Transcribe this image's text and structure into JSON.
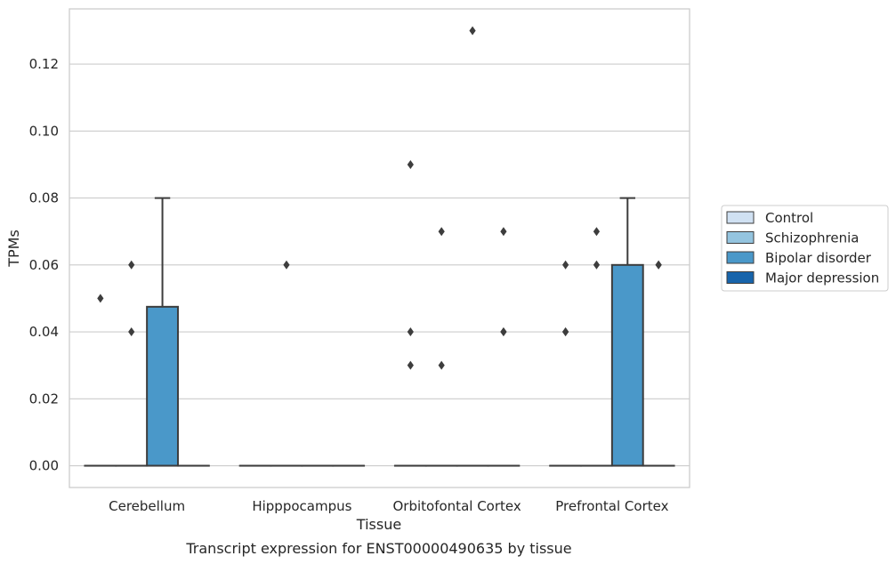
{
  "chart_data": {
    "type": "box",
    "caption": "Transcript expression for ENST00000490635 by tissue",
    "xlabel": "Tissue",
    "ylabel": "TPMs",
    "categories": [
      "Cerebellum",
      "Hipppocampus",
      "Orbitofontal Cortex",
      "Prefrontal Cortex"
    ],
    "yticks": [
      "0.00",
      "0.02",
      "0.04",
      "0.06",
      "0.08",
      "0.10",
      "0.12"
    ],
    "ylim": [
      -0.0065,
      0.1365
    ],
    "grid": "horizontal",
    "legend_position": "right",
    "series": [
      {
        "name": "Control",
        "color": "#d0e1f2"
      },
      {
        "name": "Schizophrenia",
        "color": "#94c4df"
      },
      {
        "name": "Bipolar disorder",
        "color": "#4a98c9"
      },
      {
        "name": "Major depression",
        "color": "#1764ab"
      }
    ],
    "boxes": [
      {
        "category": 0,
        "series": 0,
        "q1": 0,
        "median": 0,
        "q3": 0,
        "whisker_low": 0,
        "whisker_high": 0,
        "outliers": [
          0.05
        ]
      },
      {
        "category": 0,
        "series": 1,
        "q1": 0,
        "median": 0,
        "q3": 0,
        "whisker_low": 0,
        "whisker_high": 0,
        "outliers": [
          0.06,
          0.04
        ]
      },
      {
        "category": 0,
        "series": 2,
        "q1": 0,
        "median": 0,
        "q3": 0.0475,
        "whisker_low": 0,
        "whisker_high": 0.08,
        "outliers": []
      },
      {
        "category": 0,
        "series": 3,
        "q1": 0,
        "median": 0,
        "q3": 0,
        "whisker_low": 0,
        "whisker_high": 0,
        "outliers": []
      },
      {
        "category": 1,
        "series": 0,
        "q1": 0,
        "median": 0,
        "q3": 0,
        "whisker_low": 0,
        "whisker_high": 0,
        "outliers": []
      },
      {
        "category": 1,
        "series": 1,
        "q1": 0,
        "median": 0,
        "q3": 0,
        "whisker_low": 0,
        "whisker_high": 0,
        "outliers": [
          0.06
        ]
      },
      {
        "category": 1,
        "series": 2,
        "q1": 0,
        "median": 0,
        "q3": 0,
        "whisker_low": 0,
        "whisker_high": 0,
        "outliers": []
      },
      {
        "category": 1,
        "series": 3,
        "q1": 0,
        "median": 0,
        "q3": 0,
        "whisker_low": 0,
        "whisker_high": 0,
        "outliers": []
      },
      {
        "category": 2,
        "series": 0,
        "q1": 0,
        "median": 0,
        "q3": 0,
        "whisker_low": 0,
        "whisker_high": 0,
        "outliers": [
          0.09,
          0.04,
          0.03
        ]
      },
      {
        "category": 2,
        "series": 1,
        "q1": 0,
        "median": 0,
        "q3": 0,
        "whisker_low": 0,
        "whisker_high": 0,
        "outliers": [
          0.07,
          0.03
        ]
      },
      {
        "category": 2,
        "series": 2,
        "q1": 0,
        "median": 0,
        "q3": 0,
        "whisker_low": 0,
        "whisker_high": 0,
        "outliers": [
          0.13
        ]
      },
      {
        "category": 2,
        "series": 3,
        "q1": 0,
        "median": 0,
        "q3": 0,
        "whisker_low": 0,
        "whisker_high": 0,
        "outliers": [
          0.07,
          0.04,
          0.04
        ]
      },
      {
        "category": 3,
        "series": 0,
        "q1": 0,
        "median": 0,
        "q3": 0,
        "whisker_low": 0,
        "whisker_high": 0,
        "outliers": [
          0.06,
          0.04,
          0.04
        ]
      },
      {
        "category": 3,
        "series": 1,
        "q1": 0,
        "median": 0,
        "q3": 0,
        "whisker_low": 0,
        "whisker_high": 0,
        "outliers": [
          0.07,
          0.06
        ]
      },
      {
        "category": 3,
        "series": 2,
        "q1": 0,
        "median": 0,
        "q3": 0.06,
        "whisker_low": 0,
        "whisker_high": 0.08,
        "outliers": []
      },
      {
        "category": 3,
        "series": 3,
        "q1": 0,
        "median": 0,
        "q3": 0,
        "whisker_low": 0,
        "whisker_high": 0,
        "outliers": [
          0.06,
          0.06
        ]
      }
    ],
    "styles": {
      "grid_color": "#cccccc",
      "frame_color": "#cccccc",
      "box_edge_color": "#3d3d3d",
      "outlier_color": "#3d3d3d"
    }
  }
}
